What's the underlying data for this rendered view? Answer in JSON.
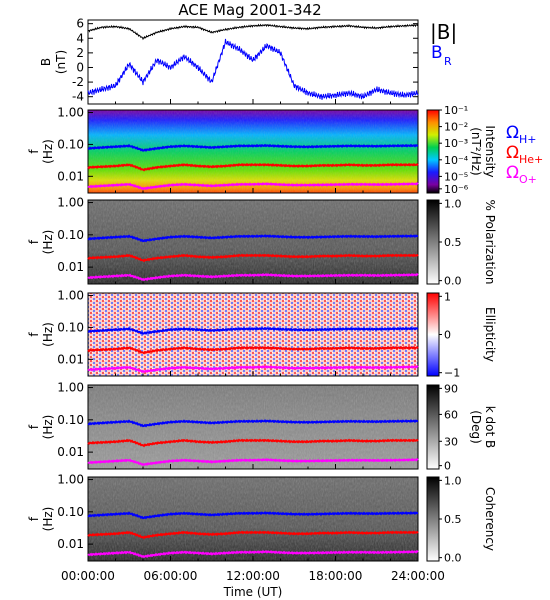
{
  "title": "ACE Mag 2001-342",
  "x_axis": {
    "label": "Time (UT)",
    "ticks": [
      "00:00:00",
      "06:00:00",
      "12:00:00",
      "18:00:00",
      "24:00:00"
    ],
    "range_hours": [
      0,
      24
    ]
  },
  "legend": {
    "b_total": "|B|",
    "b_radial_main": "B",
    "b_radial_sub": "R",
    "omega_h_sub": "H+",
    "omega_he_sub": "He+",
    "omega_o_sub": "O+",
    "omega_symbol": "Ω"
  },
  "colors": {
    "b_total": "#000000",
    "b_radial": "#0000ff",
    "omega_h": "#0000ff",
    "omega_he": "#ff0000",
    "omega_o": "#ff00ff"
  },
  "panels": [
    {
      "id": "mag",
      "ylabel": "B",
      "yunit": "(nT)",
      "yticks": [
        "6",
        "4",
        "2",
        "0",
        "-2",
        "-4"
      ],
      "ylim": [
        -5,
        6.5
      ]
    },
    {
      "id": "intensity",
      "ylabel": "f",
      "yunit": "(Hz)",
      "yticks": [
        "1.00",
        "0.10",
        "0.01"
      ],
      "ylim": [
        0.003,
        1.2
      ],
      "yscale": "log",
      "colorbar": {
        "title": "Intensity",
        "unit": "(nT²/Hz)",
        "ticks": [
          "10⁻¹",
          "10⁻²",
          "10⁻³",
          "10⁻⁴",
          "10⁻⁵",
          "10⁻⁶"
        ],
        "map": "rainbow"
      }
    },
    {
      "id": "polarization",
      "ylabel": "f",
      "yunit": "(Hz)",
      "yticks": [
        "1.00",
        "0.10",
        "0.01"
      ],
      "yscale": "log",
      "colorbar": {
        "title": "% Polarization",
        "unit": "",
        "ticks": [
          "1.0",
          "0.5",
          "0.0"
        ],
        "map": "gray"
      }
    },
    {
      "id": "ellipticity",
      "ylabel": "f",
      "yunit": "(Hz)",
      "yticks": [
        "1.00",
        "0.10",
        "0.01"
      ],
      "yscale": "log",
      "colorbar": {
        "title": "Ellipticity",
        "unit": "",
        "ticks": [
          "1",
          "0",
          "−1"
        ],
        "map": "bwr"
      }
    },
    {
      "id": "kdotb",
      "ylabel": "f",
      "yunit": "(Hz)",
      "yticks": [
        "1.00",
        "0.10",
        "0.01"
      ],
      "yscale": "log",
      "colorbar": {
        "title": "k dot B",
        "unit": "(Deg)",
        "ticks": [
          "90",
          "60",
          "30",
          "0"
        ],
        "map": "gray"
      }
    },
    {
      "id": "coherency",
      "ylabel": "f",
      "yunit": "(Hz)",
      "yticks": [
        "1.00",
        "0.10",
        "0.01"
      ],
      "yscale": "log",
      "colorbar": {
        "title": "Coherency",
        "unit": "",
        "ticks": [
          "1.0",
          "0.5",
          "0.0"
        ],
        "map": "gray"
      }
    }
  ],
  "chart_data": {
    "type": "line",
    "title": "ACE Mag 2001-342",
    "xlabel": "Time (UT)",
    "x_hours": [
      0,
      1,
      2,
      3,
      4,
      5,
      6,
      7,
      8,
      9,
      10,
      11,
      12,
      13,
      14,
      15,
      16,
      17,
      18,
      19,
      20,
      21,
      22,
      23,
      24
    ],
    "series": [
      {
        "name": "|B|",
        "values": [
          5.0,
          5.5,
          5.6,
          5.3,
          4.0,
          4.8,
          5.3,
          5.6,
          5.5,
          4.8,
          5.2,
          5.5,
          5.7,
          5.8,
          5.6,
          5.4,
          5.3,
          5.5,
          5.6,
          5.7,
          5.5,
          5.4,
          5.6,
          5.7,
          5.8
        ]
      },
      {
        "name": "B_R",
        "values": [
          -3.5,
          -3.0,
          -2.5,
          0.5,
          -2.0,
          1.0,
          0.0,
          1.5,
          0.0,
          -2.0,
          3.5,
          2.5,
          1.0,
          3.0,
          2.0,
          -2.5,
          -3.5,
          -4.0,
          -3.8,
          -3.5,
          -4.0,
          -3.0,
          -3.5,
          -3.8,
          -3.5
        ]
      },
      {
        "name": "Ω_H+ (Hz)",
        "values": [
          0.075,
          0.08,
          0.085,
          0.09,
          0.065,
          0.075,
          0.085,
          0.09,
          0.085,
          0.08,
          0.085,
          0.09,
          0.09,
          0.092,
          0.088,
          0.085,
          0.084,
          0.086,
          0.088,
          0.09,
          0.089,
          0.088,
          0.09,
          0.091,
          0.092
        ]
      },
      {
        "name": "Ω_He+ (Hz)",
        "values": [
          0.019,
          0.02,
          0.021,
          0.023,
          0.016,
          0.019,
          0.021,
          0.023,
          0.021,
          0.02,
          0.021,
          0.023,
          0.023,
          0.023,
          0.022,
          0.021,
          0.021,
          0.022,
          0.022,
          0.023,
          0.022,
          0.022,
          0.023,
          0.023,
          0.023
        ]
      },
      {
        "name": "Ω_O+ (Hz)",
        "values": [
          0.0047,
          0.005,
          0.0053,
          0.0056,
          0.0041,
          0.0047,
          0.0053,
          0.0056,
          0.0053,
          0.005,
          0.0053,
          0.0056,
          0.0056,
          0.0058,
          0.0055,
          0.0053,
          0.0053,
          0.0054,
          0.0055,
          0.0056,
          0.0056,
          0.0055,
          0.0056,
          0.0057,
          0.0058
        ]
      }
    ],
    "ylim_mag": [
      -5,
      6.5
    ],
    "ylim_freq": [
      0.003,
      1.2
    ]
  }
}
